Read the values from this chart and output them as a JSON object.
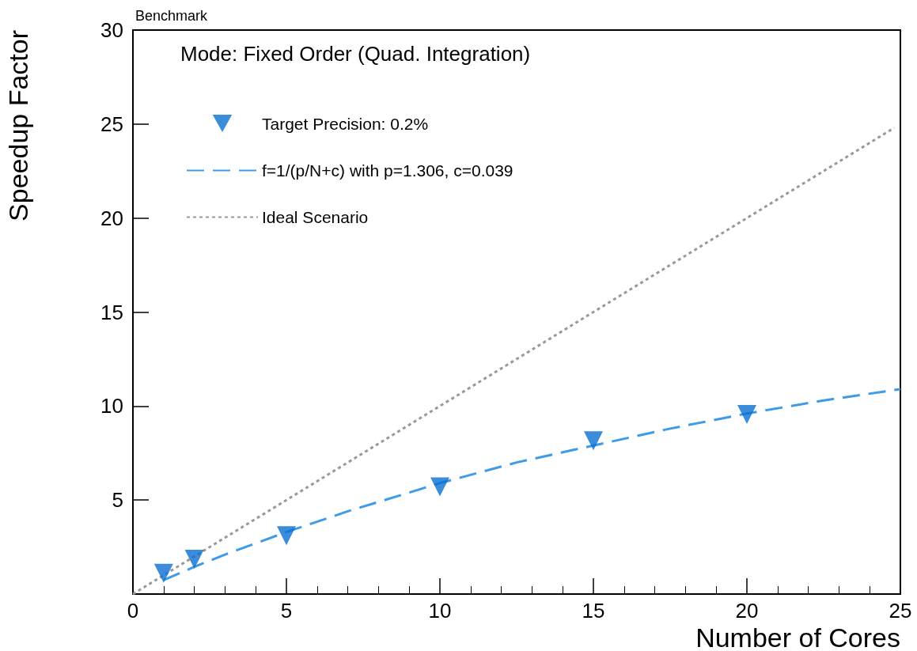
{
  "chart_data": {
    "type": "scatter",
    "title": "Benchmark",
    "xlabel": "Number of Cores",
    "ylabel": "Speedup Factor",
    "annotations": [
      "Mode: Fixed Order (Quad. Integration)"
    ],
    "xlim": [
      0,
      25
    ],
    "xticks": [
      0,
      5,
      10,
      15,
      20,
      25
    ],
    "ylim": [
      0,
      30
    ],
    "yticks": [
      5,
      10,
      15,
      20,
      25,
      30
    ],
    "grid": false,
    "legend": "top left",
    "series": [
      {
        "name": "Target Precision: 0.2%",
        "type": "scatter",
        "marker": "triangle",
        "color": "#0a6fd1",
        "x": [
          1,
          2,
          5,
          10,
          15,
          20
        ],
        "values": [
          1.1,
          1.85,
          3.1,
          5.7,
          8.15,
          9.55
        ]
      },
      {
        "name": "f=1/(p/N+c) with p=1.306, c=0.039",
        "type": "line",
        "line_style": "dashed",
        "color": "#3d9be9",
        "x": [
          1,
          2,
          3,
          5,
          7,
          10,
          12.5,
          15,
          17.5,
          20,
          22.5,
          25
        ],
        "values": [
          0.74,
          1.45,
          2.1,
          3.3,
          4.4,
          5.9,
          7.0,
          7.9,
          8.8,
          9.6,
          10.3,
          10.9
        ]
      },
      {
        "name": "Ideal Scenario",
        "type": "line",
        "line_style": "dotted",
        "color": "#999999",
        "x": [
          0,
          24.8
        ],
        "values": [
          0,
          24.8
        ]
      }
    ]
  }
}
